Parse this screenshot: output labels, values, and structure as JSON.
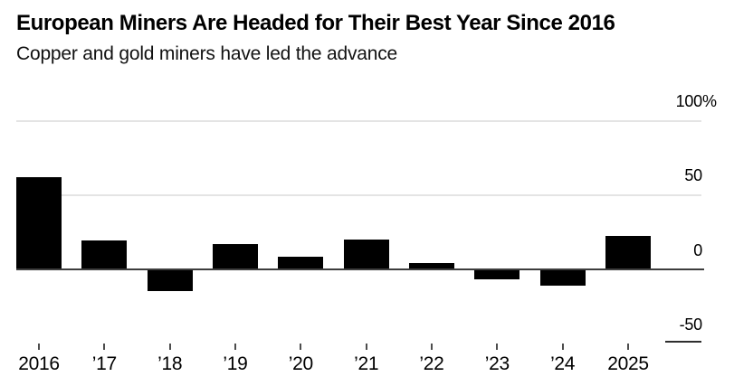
{
  "header": {
    "title": "European Miners Are Headed for Their Best Year Since 2016",
    "subtitle": "Copper and gold miners have led the advance"
  },
  "chart_data": {
    "type": "bar",
    "title": "European Miners Are Headed for Their Best Year Since 2016",
    "subtitle": "Copper and gold miners have led the advance",
    "categories": [
      "2016",
      "’17",
      "’18",
      "’19",
      "’20",
      "’21",
      "’22",
      "’23",
      "’24",
      "2025"
    ],
    "values": [
      62,
      19,
      -15,
      17,
      8,
      20,
      4,
      -7,
      -11,
      22
    ],
    "unit": "%",
    "xlabel": "",
    "ylabel": "",
    "ylim": [
      -50,
      100
    ],
    "yticks": [
      {
        "value": 100,
        "label": "100",
        "suffix": "%"
      },
      {
        "value": 50,
        "label": "50",
        "suffix": ""
      },
      {
        "value": 0,
        "label": "0",
        "suffix": ""
      },
      {
        "value": -50,
        "label": "-50",
        "suffix": ""
      }
    ],
    "grid": "horizontal",
    "legend": "none",
    "axis_side": "right",
    "bar_color": "#000000",
    "zero_line_color": "#3d3d3d",
    "gridline_color": "#e4e4e4",
    "axis_end_line_color": "#2e2e2e",
    "tick_color": "#4d4d4d"
  }
}
